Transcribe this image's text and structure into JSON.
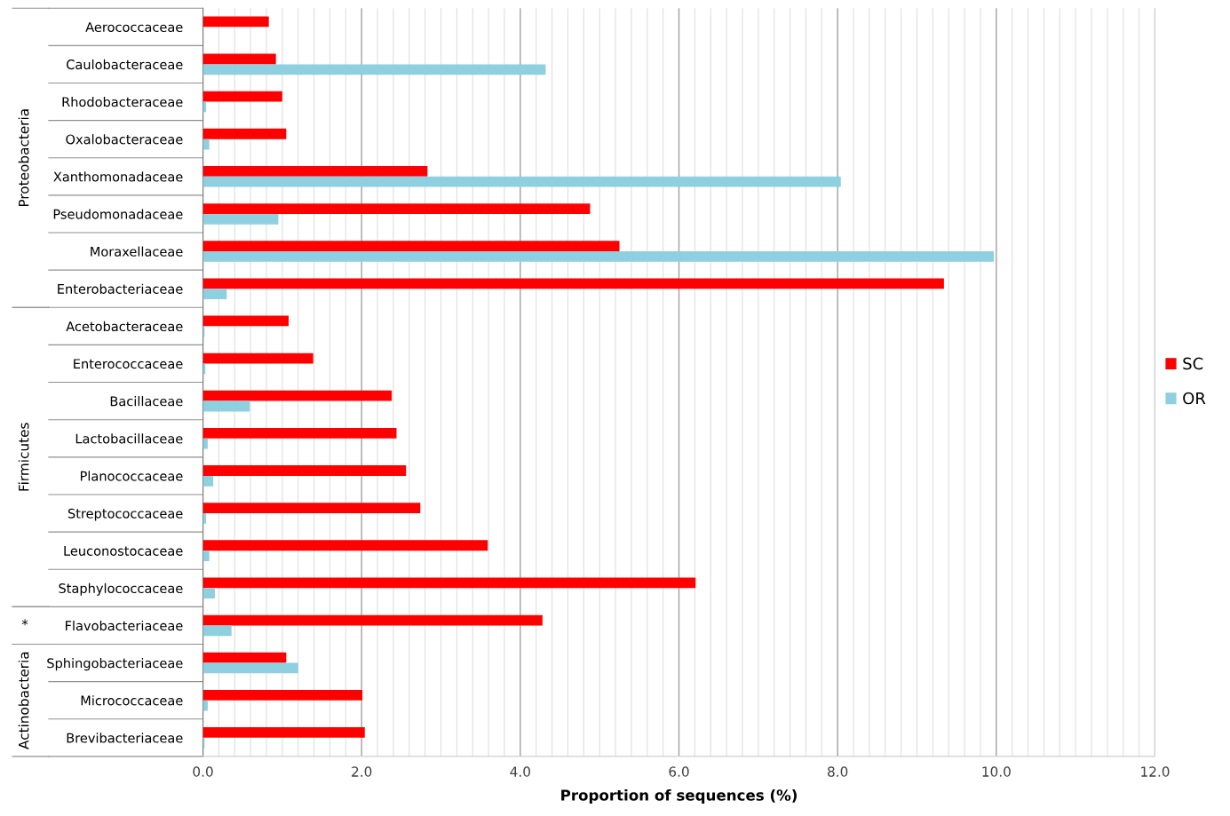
{
  "chart_data": {
    "type": "bar",
    "orientation": "horizontal",
    "xlabel": "Proportion of sequences (%)",
    "categories": [
      "Aerococcaceae",
      "Caulobacteraceae",
      "Rhodobacteraceae",
      "Oxalobacteraceae",
      "Xanthomonadaceae",
      "Pseudomonadaceae",
      "Moraxellaceae",
      "Enterobacteriaceae",
      "Acetobacteraceae",
      "Enterococcaceae",
      "Bacillaceae",
      "Lactobacillaceae",
      "Planococcaceae",
      "Streptococcaceae",
      "Leuconostocaceae",
      "Staphylococcaceae",
      "Flavobacteriaceae",
      "Sphingobacteriaceae",
      "Micrococcaceae",
      "Brevibacteriaceae"
    ],
    "series": [
      {
        "name": "SC",
        "color": "#ff0000",
        "values": [
          0.83,
          0.92,
          1.0,
          1.05,
          2.83,
          4.88,
          5.25,
          9.34,
          1.08,
          1.39,
          2.38,
          2.44,
          2.56,
          2.74,
          3.59,
          6.21,
          4.28,
          1.05,
          2.01,
          2.04
        ]
      },
      {
        "name": "OR",
        "color": "#8ecfe0",
        "values": [
          0,
          4.32,
          0.04,
          0.08,
          8.04,
          0.95,
          9.97,
          0.3,
          0.02,
          0.03,
          0.59,
          0.06,
          0.13,
          0.04,
          0.08,
          0.15,
          0.36,
          1.2,
          0.06,
          0.02
        ]
      }
    ],
    "xlim": [
      0,
      12
    ],
    "xticks": [
      {
        "value": 0,
        "label": "0.0"
      },
      {
        "value": 2,
        "label": "2.0"
      },
      {
        "value": 4,
        "label": "4.0"
      },
      {
        "value": 6,
        "label": "6.0"
      },
      {
        "value": 8,
        "label": "8.0"
      },
      {
        "value": 10,
        "label": "10.0"
      },
      {
        "value": 12,
        "label": "12.0"
      }
    ],
    "grid": "x",
    "legend": "right",
    "annotations": [
      "Proteobacteria",
      "Firmicutes",
      "*",
      "Actinobacteria"
    ]
  }
}
